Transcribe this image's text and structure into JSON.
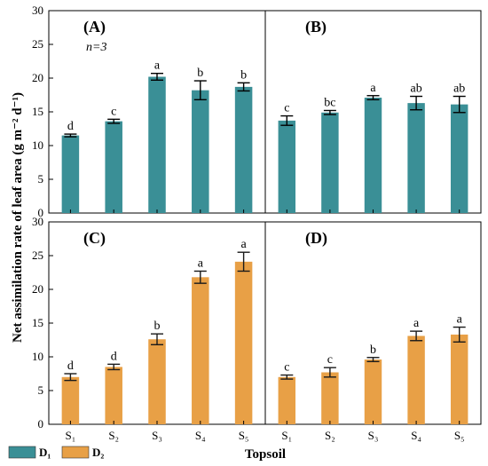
{
  "figure": {
    "ylabel": "Net assimilation rate of leaf area (g m⁻² d⁻¹)",
    "xlabel": "Topsoil",
    "legend": [
      {
        "label": "D₁",
        "color": "#3a8f96"
      },
      {
        "label": "D₂",
        "color": "#e8a046"
      }
    ]
  },
  "chart_data": [
    {
      "type": "bar",
      "panel": "(A)",
      "annotation": "n=3",
      "categories": [
        "S₁",
        "S₂",
        "S₃",
        "S₄",
        "S₅"
      ],
      "values": [
        11.5,
        13.6,
        20.2,
        18.2,
        18.7
      ],
      "errors": [
        0.2,
        0.3,
        0.5,
        1.4,
        0.6
      ],
      "letters": [
        "d",
        "c",
        "a",
        "b",
        "b"
      ],
      "ylim": [
        0,
        30
      ],
      "yticks": [
        0,
        5,
        10,
        15,
        20,
        25,
        30
      ],
      "color": "#3a8f96",
      "err_color": "#000000"
    },
    {
      "type": "bar",
      "panel": "(B)",
      "categories": [
        "S₁",
        "S₂",
        "S₃",
        "S₄",
        "S₅"
      ],
      "values": [
        13.7,
        14.9,
        17.1,
        16.3,
        16.1
      ],
      "errors": [
        0.7,
        0.3,
        0.3,
        1.0,
        1.2
      ],
      "letters": [
        "c",
        "bc",
        "a",
        "ab",
        "ab"
      ],
      "ylim": [
        0,
        30
      ],
      "color": "#3a8f96",
      "err_color": "#000000"
    },
    {
      "type": "bar",
      "panel": "(C)",
      "categories": [
        "S₁",
        "S₂",
        "S₃",
        "S₄",
        "S₅"
      ],
      "values": [
        7.0,
        8.5,
        12.6,
        21.8,
        24.1
      ],
      "errors": [
        0.5,
        0.4,
        0.8,
        0.9,
        1.4
      ],
      "letters": [
        "d",
        "d",
        "b",
        "a",
        "a"
      ],
      "ylim": [
        0,
        30
      ],
      "yticks": [
        0,
        5,
        10,
        15,
        20,
        25,
        30
      ],
      "color": "#e8a046",
      "err_color": "#1a1a1a"
    },
    {
      "type": "bar",
      "panel": "(D)",
      "categories": [
        "S₁",
        "S₂",
        "S₃",
        "S₄",
        "S₅"
      ],
      "values": [
        7.0,
        7.7,
        9.6,
        13.1,
        13.3
      ],
      "errors": [
        0.3,
        0.7,
        0.3,
        0.7,
        1.1
      ],
      "letters": [
        "c",
        "c",
        "b",
        "a",
        "a"
      ],
      "ylim": [
        0,
        30
      ],
      "color": "#e8a046",
      "err_color": "#1a1a1a"
    }
  ]
}
